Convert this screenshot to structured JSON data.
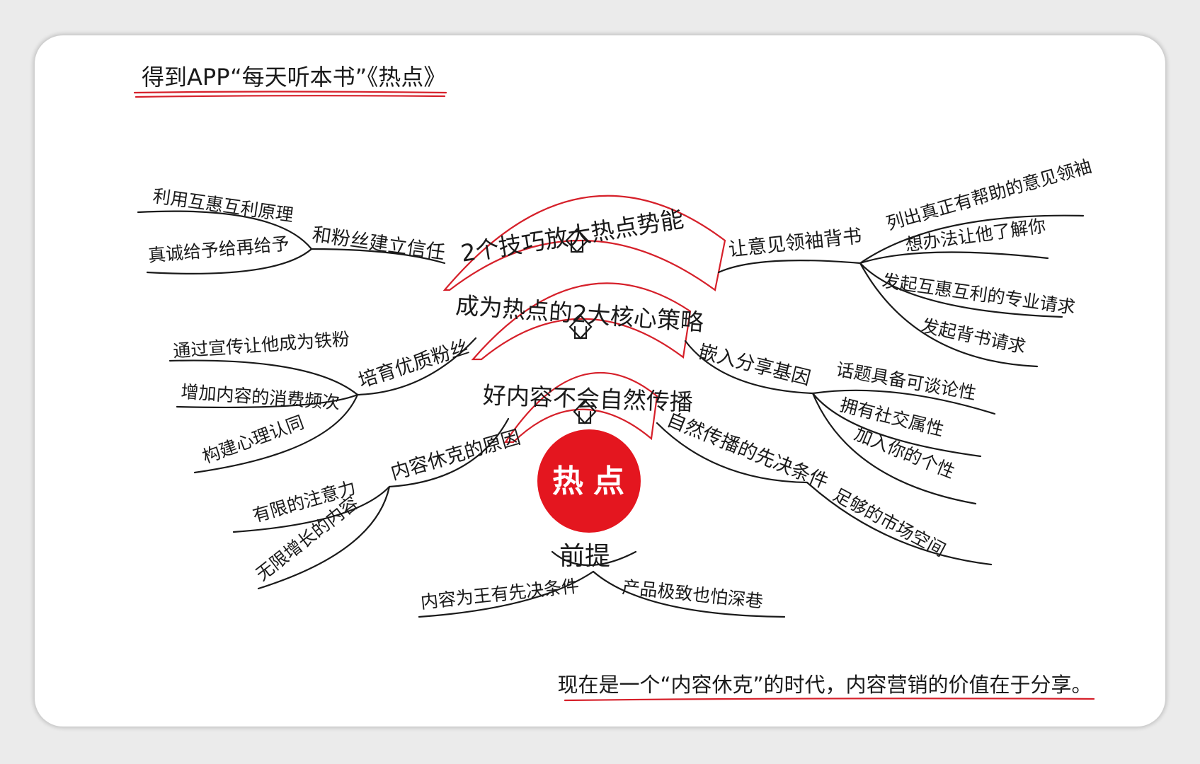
{
  "title": "得到APP“每天听本书”《热点》",
  "center": "热点",
  "premise": "前提",
  "footer": "现在是一个“内容休克”的时代，内容营销的价值在于分享。",
  "bands": {
    "inner": "好内容不会自然传播",
    "middle": "成为热点的2大核心策略",
    "outer": "2个技巧放大热点势能"
  },
  "left": {
    "top": {
      "label": "和粉丝建立信任",
      "leaves": [
        "利用互惠互利原理",
        "真诚给予给再给予"
      ]
    },
    "mid": {
      "label": "培育优质粉丝",
      "leaves": [
        "通过宣传让他成为铁粉",
        "增加内容的消费频次",
        "构建心理认同"
      ]
    },
    "bottom": {
      "label": "内容休克的原因",
      "leaves": [
        "有限的注意力",
        "无限增长的内容"
      ]
    }
  },
  "right": {
    "top": {
      "label": "让意见领袖背书",
      "leaves": [
        "列出真正有帮助的意见领袖",
        "想办法让他了解你",
        "发起互惠互利的专业请求",
        "发起背书请求"
      ]
    },
    "mid": {
      "label": "嵌入分享基因",
      "leaves": [
        "话题具备可谈论性",
        "拥有社交属性",
        "加入你的个性"
      ]
    },
    "bottom": {
      "label": "自然传播的先决条件",
      "leaves": [
        "足够的市场空间"
      ]
    }
  },
  "premise_leaves": [
    "内容为王有先决条件",
    "产品极致也怕深巷"
  ],
  "colors": {
    "accent": "#d6202a",
    "ink": "#1a1a1a",
    "paper": "#ffffff"
  }
}
